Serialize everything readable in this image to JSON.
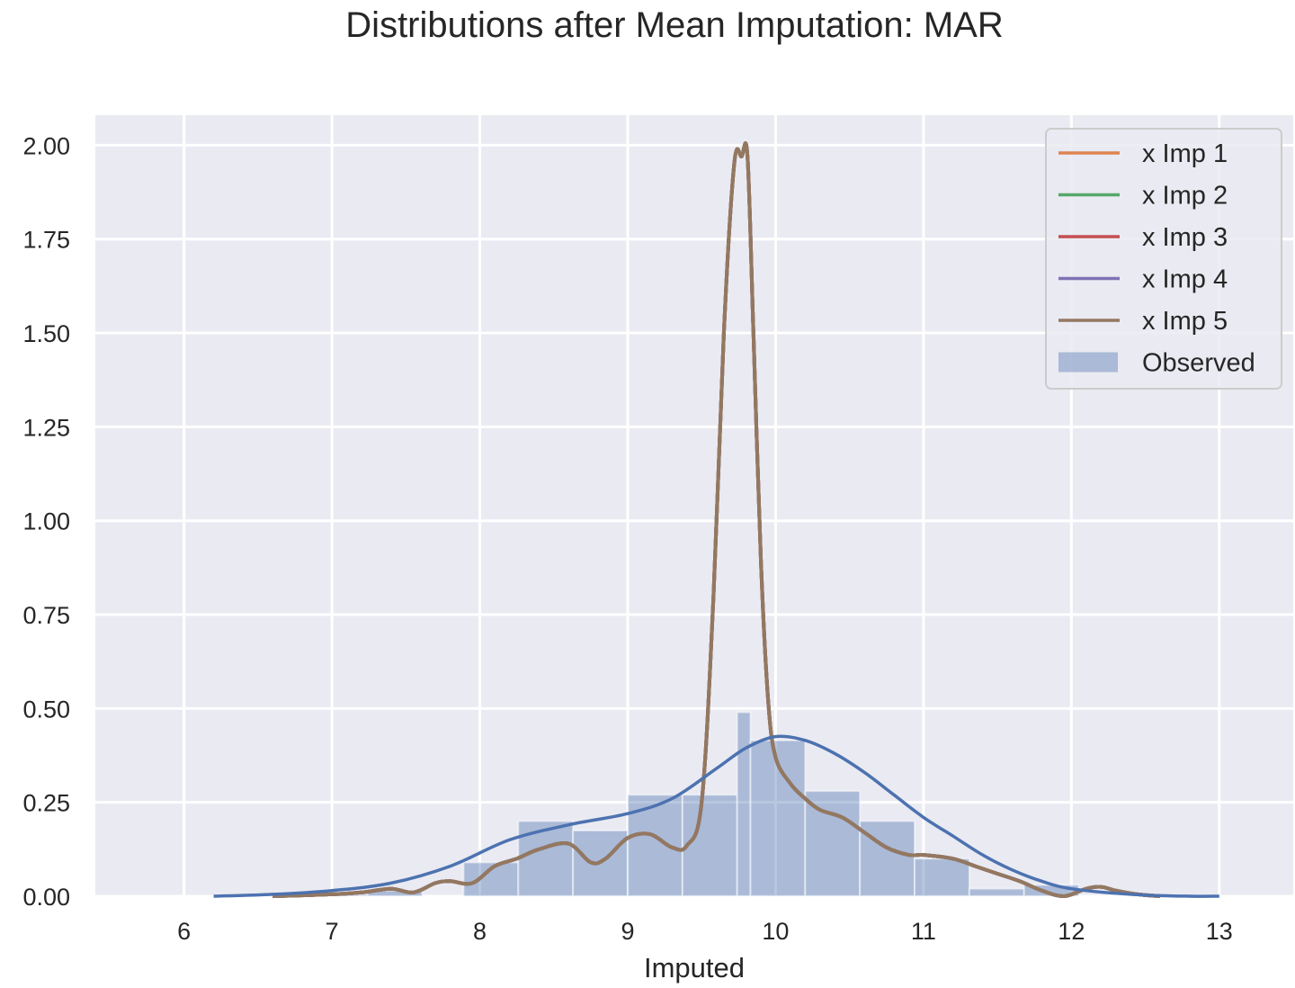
{
  "chart_data": {
    "type": "bar",
    "title": "Distributions after Mean Imputation: MAR",
    "xlabel": "Imputed",
    "ylabel": "",
    "xlim": [
      5.4,
      13.5
    ],
    "ylim": [
      0,
      2.08
    ],
    "xticks": [
      6,
      7,
      8,
      9,
      10,
      11,
      12,
      13
    ],
    "yticks": [
      0.0,
      0.25,
      0.5,
      0.75,
      1.0,
      1.25,
      1.5,
      1.75,
      2.0
    ],
    "ytick_labels": [
      "0.00",
      "0.25",
      "0.50",
      "0.75",
      "1.00",
      "1.25",
      "1.50",
      "1.75",
      "2.00"
    ],
    "grid": true,
    "legend_position": "top-right",
    "histogram": {
      "name": "Observed",
      "color": "#4c72b0",
      "bin_edges": [
        6.87,
        7.24,
        7.61,
        7.89,
        8.26,
        8.63,
        9.0,
        9.37,
        9.74,
        9.83,
        10.2,
        10.57,
        10.94,
        11.31,
        11.68,
        12.05,
        12.42
      ],
      "values": [
        0.005,
        0.015,
        0.0,
        0.09,
        0.2,
        0.175,
        0.27,
        0.27,
        0.49,
        0.415,
        0.28,
        0.2,
        0.1,
        0.02,
        0.03,
        0.0
      ]
    },
    "observed_kde": {
      "color": "#4c72b0",
      "x": [
        6.2,
        6.6,
        7.0,
        7.4,
        7.8,
        8.2,
        8.6,
        9.0,
        9.3,
        9.6,
        9.8,
        10.0,
        10.2,
        10.4,
        10.6,
        10.8,
        11.0,
        11.2,
        11.4,
        11.6,
        11.8,
        12.0,
        12.4,
        12.8,
        13.0
      ],
      "y": [
        0.0,
        0.005,
        0.015,
        0.035,
        0.08,
        0.15,
        0.19,
        0.22,
        0.26,
        0.34,
        0.395,
        0.425,
        0.415,
        0.38,
        0.33,
        0.27,
        0.21,
        0.16,
        0.11,
        0.07,
        0.04,
        0.02,
        0.005,
        0.0,
        0.0
      ]
    },
    "series": [
      {
        "name": "x Imp 1",
        "color": "#dd8452"
      },
      {
        "name": "x Imp 2",
        "color": "#55a868"
      },
      {
        "name": "x Imp 3",
        "color": "#c44e52"
      },
      {
        "name": "x Imp 4",
        "color": "#8172b3"
      },
      {
        "name": "x Imp 5",
        "color": "#937860"
      }
    ],
    "imputed_kde": {
      "x": [
        6.6,
        7.0,
        7.2,
        7.4,
        7.55,
        7.7,
        7.8,
        7.95,
        8.1,
        8.25,
        8.4,
        8.6,
        8.75,
        8.85,
        9.0,
        9.15,
        9.3,
        9.4,
        9.5,
        9.58,
        9.65,
        9.72,
        9.77,
        9.81,
        9.85,
        9.9,
        9.95,
        10.0,
        10.1,
        10.2,
        10.3,
        10.45,
        10.6,
        10.75,
        10.9,
        11.0,
        11.2,
        11.35,
        11.5,
        11.65,
        11.8,
        11.95,
        12.1,
        12.2,
        12.3,
        12.45,
        12.6
      ],
      "y": [
        0.0,
        0.005,
        0.01,
        0.02,
        0.01,
        0.035,
        0.04,
        0.035,
        0.08,
        0.1,
        0.125,
        0.14,
        0.09,
        0.1,
        0.155,
        0.165,
        0.13,
        0.135,
        0.25,
        0.8,
        1.5,
        1.95,
        1.97,
        1.97,
        1.5,
        0.9,
        0.52,
        0.37,
        0.3,
        0.26,
        0.23,
        0.21,
        0.17,
        0.13,
        0.11,
        0.11,
        0.1,
        0.08,
        0.06,
        0.04,
        0.015,
        0.0,
        0.02,
        0.025,
        0.015,
        0.005,
        0.0
      ]
    }
  }
}
